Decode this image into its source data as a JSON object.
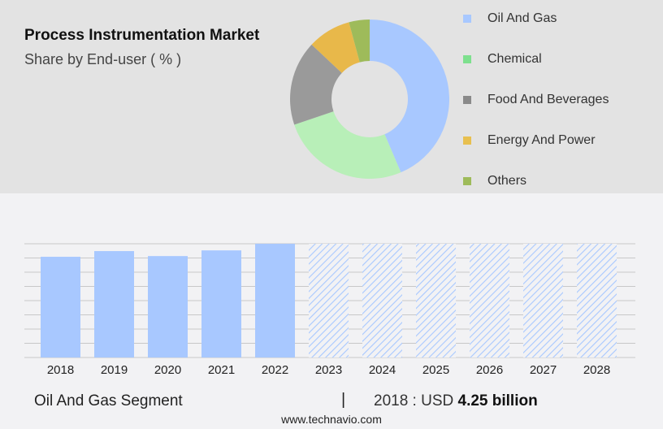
{
  "title": "Process Instrumentation Market",
  "subtitle": "Share by End-user ( % )",
  "footer": {
    "segment": "Oil And Gas Segment",
    "separator": "|",
    "year_label": "2018 : USD ",
    "value": "4.25 billion",
    "url": "www.technavio.com"
  },
  "chart_data": [
    {
      "type": "pie",
      "variant": "donut",
      "legend_position": "right",
      "categories": [
        "Oil And Gas",
        "Chemical",
        "Food And Beverages",
        "Energy And Power",
        "Others"
      ],
      "values": [
        43.6,
        26.2,
        17.2,
        8.8,
        4.2
      ],
      "colors": [
        "#a8c8ff",
        "#b8efb8",
        "#9a9a9a",
        "#e8b84a",
        "#9ebb5a"
      ],
      "legend_colors": [
        "#a8c8ff",
        "#7ee08e",
        "#8a8a8a",
        "#e8c050",
        "#9ebb5a"
      ]
    },
    {
      "type": "bar",
      "categories": [
        "2018",
        "2019",
        "2020",
        "2021",
        "2022",
        "2023",
        "2024",
        "2025",
        "2026",
        "2027",
        "2028"
      ],
      "values": [
        4.25,
        4.49,
        4.28,
        4.52,
        4.8,
        null,
        null,
        null,
        null,
        null,
        null
      ],
      "forecast": [
        "2023",
        "2024",
        "2025",
        "2026",
        "2027",
        "2028"
      ],
      "unit": "USD billion",
      "grid": true,
      "bar_color": "#a8c8ff"
    }
  ]
}
